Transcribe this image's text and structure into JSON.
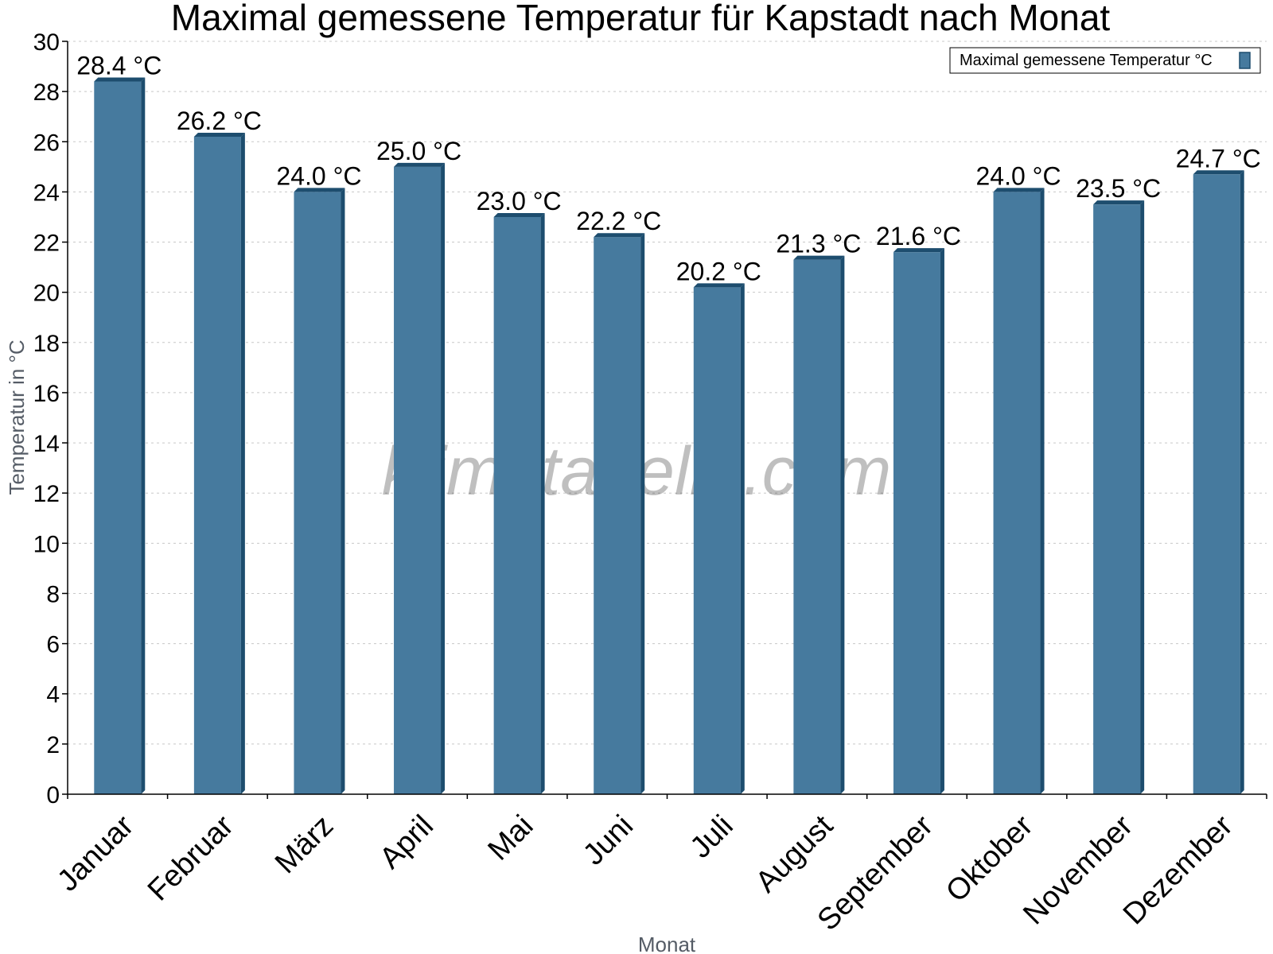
{
  "chart_data": {
    "type": "bar",
    "title": "Maximal gemessene Temperatur für Kapstadt nach Monat",
    "xlabel": "Monat",
    "ylabel": "Temperatur in °C",
    "ylim": [
      0,
      30
    ],
    "yticks": [
      0,
      2,
      4,
      6,
      8,
      10,
      12,
      14,
      16,
      18,
      20,
      22,
      24,
      26,
      28,
      30
    ],
    "grid": true,
    "legend_position": "top-right",
    "categories": [
      "Januar",
      "Februar",
      "März",
      "April",
      "Mai",
      "Juni",
      "Juli",
      "August",
      "September",
      "Oktober",
      "November",
      "Dezember"
    ],
    "series": [
      {
        "name": "Maximal gemessene Temperatur °C",
        "color": "#467a9e",
        "edge_color": "#1d4d6e",
        "values": [
          28.4,
          26.2,
          24.0,
          25.0,
          23.0,
          22.2,
          20.2,
          21.3,
          21.6,
          24.0,
          23.5,
          24.7
        ],
        "data_labels": [
          "28.4 °C",
          "26.2 °C",
          "24.0 °C",
          "25.0 °C",
          "23.0 °C",
          "22.2 °C",
          "20.2 °C",
          "21.3 °C",
          "21.6 °C",
          "24.0 °C",
          "23.5 °C",
          "24.7 °C"
        ]
      }
    ],
    "watermark": "klimatabelle.com"
  }
}
